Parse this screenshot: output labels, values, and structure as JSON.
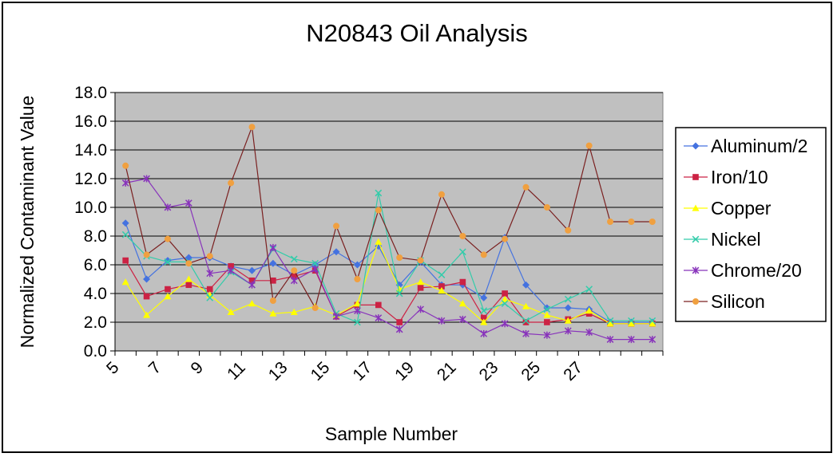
{
  "chart_data": {
    "type": "line",
    "title": "N20843 Oil Analysis",
    "xlabel": "Sample Number",
    "ylabel": "Normalized Contaminant Value",
    "ylim": [
      0,
      18
    ],
    "yticks": [
      "0.0",
      "2.0",
      "4.0",
      "6.0",
      "8.0",
      "10.0",
      "12.0",
      "14.0",
      "16.0",
      "18.0"
    ],
    "x": [
      5,
      6,
      7,
      8,
      9,
      10,
      11,
      12,
      13,
      14,
      15,
      16,
      17,
      18,
      19,
      20,
      21,
      22,
      23,
      24,
      25,
      26,
      27,
      28,
      29,
      30
    ],
    "xticks": [
      "5",
      "7",
      "9",
      "11",
      "13",
      "15",
      "17",
      "19",
      "21",
      "23",
      "25",
      "27"
    ],
    "grid": true,
    "legend_position": "right",
    "plot_background": "#c0c0c0",
    "series": [
      {
        "name": "Aluminum/2",
        "color": "#4472e0",
        "marker": "diamond",
        "values": [
          8.9,
          5.0,
          6.3,
          6.5,
          6.5,
          5.9,
          5.6,
          6.1,
          5.3,
          6.0,
          6.9,
          6.0,
          7.3,
          4.6,
          6.2,
          4.6,
          4.6,
          3.7,
          7.9,
          4.6,
          3.0,
          3.0,
          2.9,
          2.0,
          2.0,
          2.0
        ]
      },
      {
        "name": "Iron/10",
        "color": "#cc2244",
        "marker": "square",
        "values": [
          6.3,
          3.8,
          4.3,
          4.6,
          4.3,
          5.9,
          4.9,
          4.9,
          5.2,
          5.6,
          2.4,
          3.2,
          3.2,
          2.0,
          4.4,
          4.5,
          4.8,
          2.3,
          4.0,
          2.0,
          2.0,
          2.2,
          2.6,
          1.9,
          1.9,
          1.9
        ]
      },
      {
        "name": "Copper",
        "color": "#ffff00",
        "marker": "triangle",
        "values": [
          4.8,
          2.5,
          3.8,
          5.0,
          3.9,
          2.7,
          3.3,
          2.6,
          2.7,
          3.1,
          2.5,
          3.3,
          7.6,
          4.3,
          4.8,
          4.2,
          3.3,
          2.0,
          3.6,
          3.1,
          2.5,
          2.1,
          2.8,
          1.9,
          1.9,
          1.9
        ]
      },
      {
        "name": "Nickel",
        "color": "#33ccaa",
        "marker": "x",
        "values": [
          8.1,
          6.6,
          6.2,
          6.2,
          3.7,
          5.5,
          4.6,
          7.1,
          6.4,
          6.1,
          2.6,
          2.0,
          11.0,
          4.0,
          6.3,
          5.3,
          6.9,
          2.8,
          3.3,
          2.1,
          2.9,
          3.6,
          4.3,
          2.1,
          2.1,
          2.1
        ]
      },
      {
        "name": "Chrome/20",
        "color": "#8833bb",
        "marker": "star",
        "values": [
          11.7,
          12.0,
          10.0,
          10.3,
          5.4,
          5.6,
          4.6,
          7.2,
          4.9,
          5.7,
          2.4,
          2.8,
          2.3,
          1.5,
          2.9,
          2.1,
          2.2,
          1.2,
          1.9,
          1.2,
          1.1,
          1.4,
          1.3,
          0.8,
          0.8,
          0.8
        ]
      },
      {
        "name": "Silicon",
        "color": "#f0a040",
        "line_color": "#7a2020",
        "marker": "circle",
        "values": [
          12.9,
          6.7,
          7.8,
          6.1,
          6.6,
          11.7,
          15.6,
          3.5,
          5.6,
          3.0,
          8.7,
          5.0,
          9.8,
          6.5,
          6.3,
          10.9,
          8.0,
          6.7,
          7.8,
          11.4,
          10.0,
          8.4,
          14.3,
          9.0,
          9.0,
          9.0
        ]
      }
    ]
  }
}
